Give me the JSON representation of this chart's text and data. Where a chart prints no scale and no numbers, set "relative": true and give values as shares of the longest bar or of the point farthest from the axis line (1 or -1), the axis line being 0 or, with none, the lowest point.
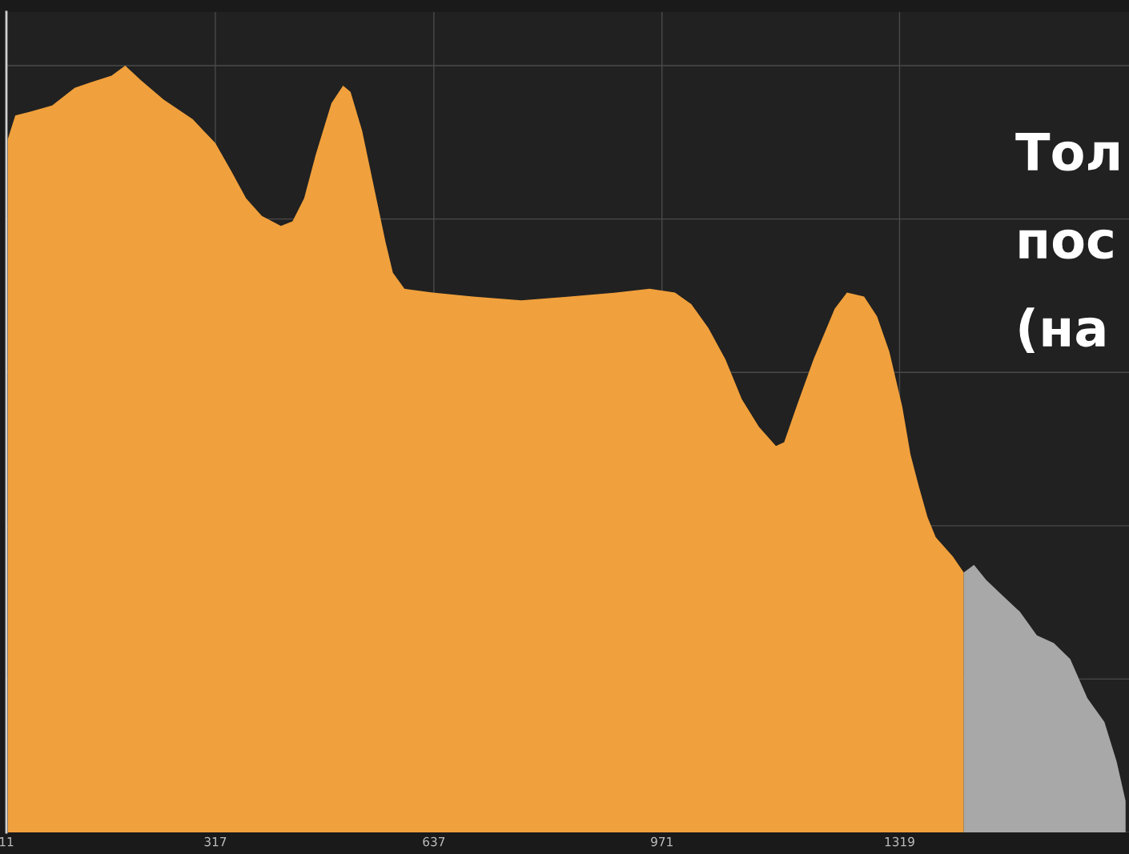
{
  "chart_data": {
    "type": "area",
    "relative": true,
    "grid": true,
    "tick_labels": "x",
    "xlim": [
      11,
      1655
    ],
    "xticks": [
      11,
      317,
      637,
      971,
      1319
    ],
    "annotations": [
      "Тол",
      "пос",
      "(на"
    ],
    "series": [
      {
        "color": "#f0a03c",
        "x": [
          13,
          24,
          46,
          78,
          111,
          133,
          165,
          185,
          208,
          241,
          284,
          317,
          340,
          362,
          385,
          413,
          430,
          447,
          464,
          487,
          504,
          515,
          532,
          549,
          566,
          577,
          594,
          635,
          694,
          765,
          836,
          904,
          953,
          990,
          1014,
          1039,
          1064,
          1088,
          1113,
          1138,
          1150,
          1168,
          1193,
          1224,
          1242,
          1267,
          1286,
          1304,
          1323,
          1335,
          1347,
          1360,
          1372,
          1397,
          1413
        ],
        "values": [
          0.904,
          0.935,
          0.94,
          0.948,
          0.971,
          0.978,
          0.987,
          1.0,
          0.981,
          0.956,
          0.93,
          0.899,
          0.863,
          0.827,
          0.804,
          0.791,
          0.797,
          0.827,
          0.884,
          0.951,
          0.974,
          0.966,
          0.915,
          0.843,
          0.771,
          0.73,
          0.709,
          0.704,
          0.699,
          0.694,
          0.699,
          0.704,
          0.709,
          0.704,
          0.689,
          0.658,
          0.617,
          0.565,
          0.529,
          0.504,
          0.509,
          0.555,
          0.617,
          0.683,
          0.704,
          0.699,
          0.673,
          0.627,
          0.555,
          0.493,
          0.452,
          0.411,
          0.385,
          0.36,
          0.339
        ]
      },
      {
        "color": "#a8a8a8",
        "x": [
          1413,
          1428,
          1446,
          1471,
          1495,
          1520,
          1545,
          1569,
          1594,
          1619,
          1637,
          1650
        ],
        "values": [
          0.339,
          0.349,
          0.329,
          0.308,
          0.288,
          0.257,
          0.247,
          0.226,
          0.175,
          0.144,
          0.092,
          0.041
        ]
      }
    ]
  }
}
